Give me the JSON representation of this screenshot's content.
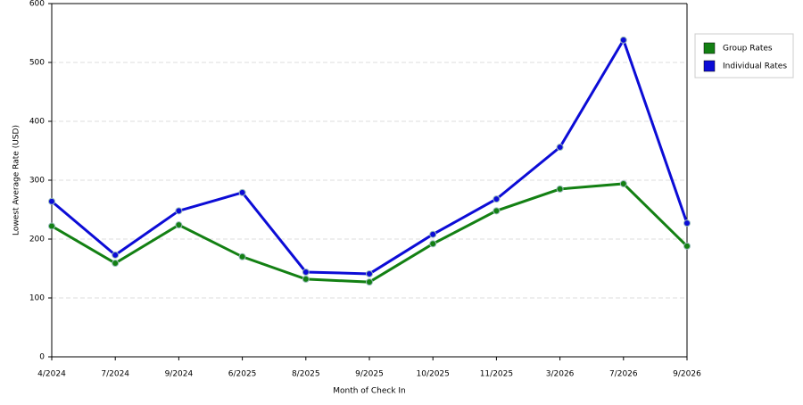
{
  "chart_data": {
    "type": "line",
    "x_label": "Month of Check In",
    "y_label": "Lowest Average Rate (USD)",
    "categories": [
      "4/2024",
      "7/2024",
      "9/2024",
      "6/2025",
      "8/2025",
      "9/2025",
      "10/2025",
      "11/2025",
      "3/2026",
      "7/2026",
      "9/2026"
    ],
    "series": [
      {
        "name": "Group Rates",
        "color": "#138013",
        "values": [
          222,
          159,
          224,
          170,
          132,
          127,
          192,
          248,
          285,
          294,
          188
        ]
      },
      {
        "name": "Individual Rates",
        "color": "#0c0cd6",
        "values": [
          264,
          173,
          248,
          279,
          144,
          141,
          208,
          268,
          356,
          538,
          227
        ]
      }
    ],
    "ylim": [
      0,
      600
    ],
    "yticks": [
      0,
      100,
      200,
      300,
      400,
      500,
      600
    ],
    "grid": true,
    "legend": "right"
  }
}
